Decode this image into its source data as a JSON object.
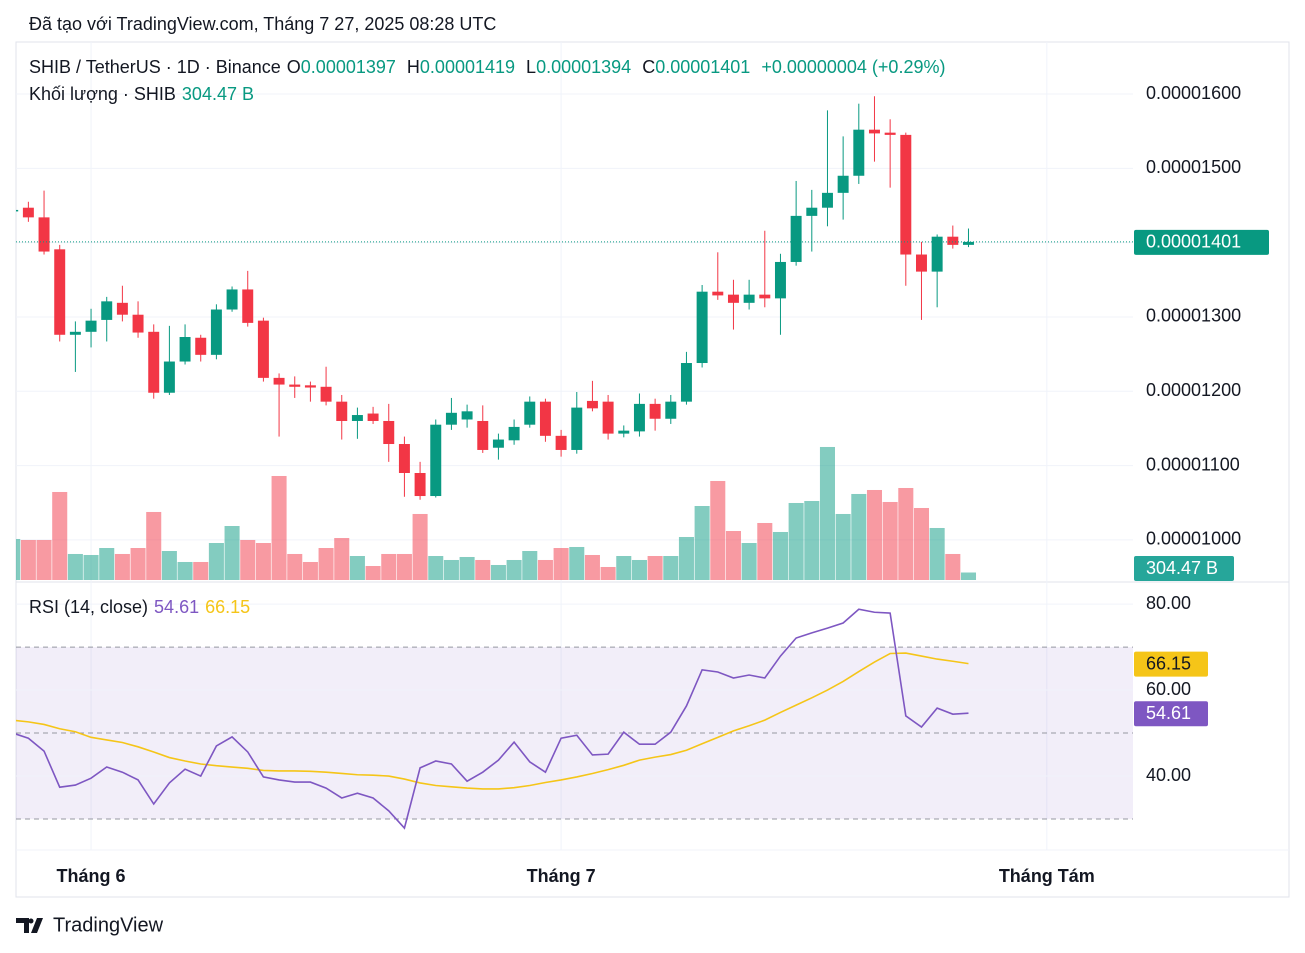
{
  "caption": "Đã tạo với TradingView.com, Tháng 7 27, 2025 08:28 UTC",
  "brand": "TradingView",
  "chart_data": {
    "type": "candlestick",
    "title": "SHIB / TetherUS · 1D · Binance",
    "ohlc_labels": [
      "O",
      "H",
      "L",
      "C"
    ],
    "change": "+0.00000004 (+0.29%)",
    "open": [
      1.442e-05,
      1.447e-05,
      1.434e-05,
      1.391e-05,
      1.276e-05,
      1.28e-05,
      1.296e-05,
      1.319e-05,
      1.303e-05,
      1.28e-05,
      1.198e-05,
      1.24e-05,
      1.272e-05,
      1.249e-05,
      1.31e-05,
      1.337e-05,
      1.295e-05,
      1.218e-05,
      1.209e-05,
      1.208e-05,
      1.206e-05,
      1.186e-05,
      1.16e-05,
      1.17e-05,
      1.16e-05,
      1.129e-05,
      1.09e-05,
      1.059e-05,
      1.155e-05,
      1.162e-05,
      1.16e-05,
      1.124e-05,
      1.134e-05,
      1.155e-05,
      1.186e-05,
      1.14e-05,
      1.121e-05,
      1.187e-05,
      1.186e-05,
      1.143e-05,
      1.146e-05,
      1.183e-05,
      1.163e-05,
      1.186e-05,
      1.238e-05,
      1.334e-05,
      1.33e-05,
      1.319e-05,
      1.33e-05,
      1.325e-05,
      1.374e-05,
      1.436e-05,
      1.447e-05,
      1.467e-05,
      1.49e-05,
      1.552e-05,
      1.548e-05,
      1.545e-05,
      1.384e-05,
      1.361e-05,
      1.408e-05,
      1.397e-05
    ],
    "high": [
      1.446e-05,
      1.455e-05,
      1.47e-05,
      1.397e-05,
      1.294e-05,
      1.311e-05,
      1.327e-05,
      1.342e-05,
      1.321e-05,
      1.29e-05,
      1.288e-05,
      1.29e-05,
      1.276e-05,
      1.317e-05,
      1.341e-05,
      1.362e-05,
      1.299e-05,
      1.224e-05,
      1.22e-05,
      1.213e-05,
      1.233e-05,
      1.195e-05,
      1.178e-05,
      1.179e-05,
      1.183e-05,
      1.139e-05,
      1.105e-05,
      1.162e-05,
      1.191e-05,
      1.182e-05,
      1.181e-05,
      1.143e-05,
      1.162e-05,
      1.193e-05,
      1.19e-05,
      1.148e-05,
      1.199e-05,
      1.214e-05,
      1.195e-05,
      1.154e-05,
      1.197e-05,
      1.19e-05,
      1.195e-05,
      1.253e-05,
      1.343e-05,
      1.387e-05,
      1.35e-05,
      1.35e-05,
      1.416e-05,
      1.385e-05,
      1.483e-05,
      1.471e-05,
      1.578e-05,
      1.543e-05,
      1.587e-05,
      1.597e-05,
      1.566e-05,
      1.548e-05,
      1.401e-05,
      1.411e-05,
      1.423e-05,
      1.419e-05
    ],
    "low": [
      1.44e-05,
      1.428e-05,
      1.384e-05,
      1.267e-05,
      1.226e-05,
      1.259e-05,
      1.267e-05,
      1.294e-05,
      1.272e-05,
      1.19e-05,
      1.195e-05,
      1.236e-05,
      1.24e-05,
      1.243e-05,
      1.307e-05,
      1.287e-05,
      1.213e-05,
      1.139e-05,
      1.191e-05,
      1.186e-05,
      1.181e-05,
      1.135e-05,
      1.136e-05,
      1.156e-05,
      1.105e-05,
      1.058e-05,
      1.054e-05,
      1.057e-05,
      1.148e-05,
      1.151e-05,
      1.117e-05,
      1.108e-05,
      1.128e-05,
      1.151e-05,
      1.132e-05,
      1.112e-05,
      1.116e-05,
      1.173e-05,
      1.135e-05,
      1.138e-05,
      1.139e-05,
      1.147e-05,
      1.156e-05,
      1.182e-05,
      1.232e-05,
      1.323e-05,
      1.283e-05,
      1.31e-05,
      1.313e-05,
      1.276e-05,
      1.369e-05,
      1.388e-05,
      1.422e-05,
      1.431e-05,
      1.479e-05,
      1.509e-05,
      1.474e-05,
      1.342e-05,
      1.296e-05,
      1.313e-05,
      1.392e-05,
      1.394e-05
    ],
    "close": [
      1.444e-05,
      1.434e-05,
      1.388e-05,
      1.276e-05,
      1.28e-05,
      1.295e-05,
      1.321e-05,
      1.303e-05,
      1.279e-05,
      1.198e-05,
      1.24e-05,
      1.273e-05,
      1.249e-05,
      1.31e-05,
      1.337e-05,
      1.292e-05,
      1.218e-05,
      1.209e-05,
      1.206e-05,
      1.205e-05,
      1.186e-05,
      1.16e-05,
      1.168e-05,
      1.16e-05,
      1.129e-05,
      1.09e-05,
      1.059e-05,
      1.155e-05,
      1.171e-05,
      1.173e-05,
      1.121e-05,
      1.135e-05,
      1.152e-05,
      1.186e-05,
      1.14e-05,
      1.121e-05,
      1.178e-05,
      1.177e-05,
      1.143e-05,
      1.147e-05,
      1.183e-05,
      1.163e-05,
      1.186e-05,
      1.238e-05,
      1.334e-05,
      1.329e-05,
      1.319e-05,
      1.33e-05,
      1.325e-05,
      1.374e-05,
      1.436e-05,
      1.447e-05,
      1.467e-05,
      1.49e-05,
      1.552e-05,
      1.547e-05,
      1.545e-05,
      1.384e-05,
      1.361e-05,
      1.408e-05,
      1.397e-05,
      1.401e-05
    ],
    "up_color": "#089981",
    "down_color": "#f23645",
    "xlim": [
      0.21,
      71.5
    ],
    "xticks": [
      {
        "value": 5,
        "label": "Tháng 6"
      },
      {
        "value": 35,
        "label": "Tháng 7"
      },
      {
        "value": 66,
        "label": "Tháng Tám"
      }
    ],
    "ylim": [
      9.46e-06,
      1.67e-05
    ],
    "yticks": [
      {
        "value": 1.6e-05,
        "label": "0.00001600"
      },
      {
        "value": 1.5e-05,
        "label": "0.00001500"
      },
      {
        "value": 1.4e-05,
        "label": "0.00001400"
      },
      {
        "value": 1.3e-05,
        "label": "0.00001300"
      },
      {
        "value": 1.2e-05,
        "label": "0.00001200"
      },
      {
        "value": 1.1e-05,
        "label": "0.00001100"
      },
      {
        "value": 1e-05,
        "label": "0.00001000"
      }
    ],
    "last_price_line": true,
    "volume": {
      "name": "Khối lượng · SHIB",
      "last_label": "304.47 B",
      "ylim": [
        0,
        21840
      ],
      "values": [
        1665,
        1624,
        1624,
        3573,
        1056,
        1015,
        1299,
        1056,
        1299,
        2761,
        1177,
        731,
        731,
        1502,
        2192,
        1624,
        1502,
        4222,
        1056,
        731,
        1299,
        1705,
        974,
        568,
        1056,
        1056,
        2680,
        974,
        812,
        934,
        812,
        609,
        812,
        1177,
        812,
        1299,
        1340,
        1015,
        528,
        974,
        812,
        974,
        974,
        1746,
        3004,
        4019,
        1989,
        1502,
        2314,
        1949,
        3126,
        3207,
        5400,
        2680,
        3492,
        3654,
        3167,
        3735,
        2923,
        2111,
        1056,
        304.47
      ]
    },
    "rsi": {
      "name": "RSI (14, close)",
      "color": "#7e57c2",
      "ylim": [
        22.8,
        84.9
      ],
      "yticks": [
        {
          "value": 80,
          "label": "80.00"
        },
        {
          "value": 60,
          "label": "60.00"
        },
        {
          "value": 40,
          "label": "40.00"
        }
      ],
      "bands": [
        70,
        50,
        30
      ],
      "values": [
        50.0,
        48.8,
        45.8,
        37.4,
        37.9,
        39.5,
        42.1,
        40.9,
        39.1,
        33.5,
        38.4,
        41.6,
        40.0,
        47.0,
        49.1,
        45.6,
        39.8,
        39.1,
        38.6,
        38.6,
        37.2,
        34.9,
        36.0,
        34.9,
        31.9,
        27.9,
        41.9,
        43.5,
        42.8,
        38.8,
        40.9,
        43.7,
        47.9,
        43.3,
        40.9,
        48.8,
        49.5,
        44.9,
        45.1,
        50.2,
        47.4,
        47.4,
        50.2,
        56.3,
        64.7,
        64.2,
        62.8,
        63.5,
        62.8,
        67.9,
        72.1,
        73.3,
        74.4,
        75.6,
        78.8,
        78.1,
        77.9,
        54.0,
        51.4,
        55.8,
        54.4,
        54.61
      ],
      "ma": {
        "color": "#f5c518",
        "values": [
          53,
          52.6,
          52,
          51,
          50.3,
          49,
          48.4,
          47.8,
          46.8,
          45.6,
          44.3,
          43.5,
          42.8,
          42.4,
          42.1,
          41.8,
          41.3,
          41.2,
          41.2,
          41.1,
          40.9,
          40.6,
          40.3,
          40.2,
          40.0,
          39.3,
          38.4,
          37.8,
          37.5,
          37.2,
          37.0,
          37.0,
          37.3,
          37.8,
          38.5,
          39.1,
          39.8,
          40.6,
          41.5,
          42.5,
          43.7,
          44.4,
          45.0,
          46.0,
          47.5,
          49.0,
          50.5,
          51.7,
          53.0,
          54.8,
          56.5,
          58.2,
          60.0,
          62.0,
          64.3,
          66.5,
          68.5,
          68.6,
          67.9,
          67.2,
          66.7,
          66.15
        ]
      }
    }
  }
}
